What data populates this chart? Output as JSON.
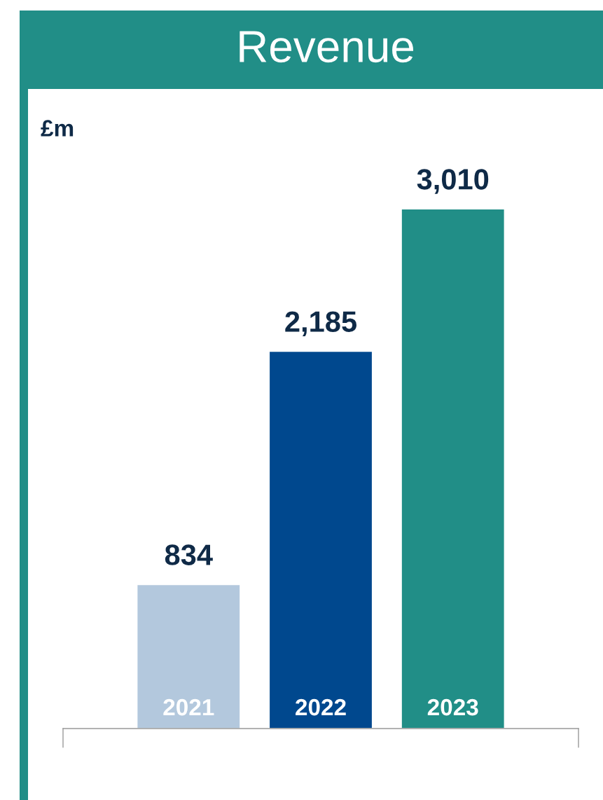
{
  "chart_data": {
    "type": "bar",
    "title": "Revenue",
    "ylabel": "£m",
    "categories": [
      "2021",
      "2022",
      "2023"
    ],
    "values": [
      834,
      2185,
      3010
    ],
    "colors": [
      "#b3c8dd",
      "#00488e",
      "#218e87"
    ],
    "value_labels": [
      "834",
      "2,185",
      "3,010"
    ],
    "legend": false
  }
}
